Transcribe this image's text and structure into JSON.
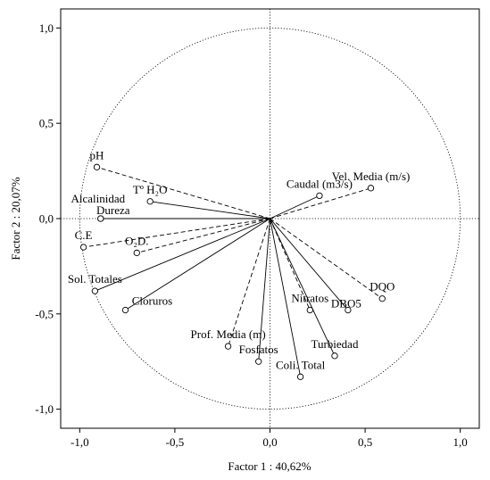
{
  "chart_data": {
    "type": "scatter",
    "subtype": "pca-correlation-circle",
    "xlabel": "Factor 1 : 40,62%",
    "ylabel": "Factor 2 : 20,07%",
    "xlim": [
      -1.1,
      1.1
    ],
    "ylim": [
      -1.1,
      1.1
    ],
    "x_ticks": [
      {
        "v": -1.0,
        "label": "-1,0"
      },
      {
        "v": -0.5,
        "label": "-0,5"
      },
      {
        "v": 0.0,
        "label": "0,0"
      },
      {
        "v": 0.5,
        "label": "0,5"
      },
      {
        "v": 1.0,
        "label": "1,0"
      }
    ],
    "y_ticks": [
      {
        "v": 1.0,
        "label": "1,0"
      },
      {
        "v": 0.5,
        "label": "0,5"
      },
      {
        "v": 0.0,
        "label": "0,0"
      },
      {
        "v": -0.5,
        "label": "-0,5"
      },
      {
        "v": -1.0,
        "label": "-1,0"
      }
    ],
    "grid": false,
    "unit_circle": true,
    "variables": [
      {
        "name": "pH",
        "x": -0.91,
        "y": 0.27,
        "line": "dashed",
        "label_pos": "above"
      },
      {
        "name": "Alcalinidad",
        "x": -0.89,
        "y": 0.0,
        "line": "solid",
        "label_pos": "upper-left"
      },
      {
        "name": "Dureza",
        "x": -0.89,
        "y": 0.0,
        "line": "dashed",
        "label_pos": "above-right"
      },
      {
        "name": "Tº H₂O",
        "x": -0.63,
        "y": 0.09,
        "line": "solid",
        "label_pos": "above"
      },
      {
        "name": "C.E",
        "x": -0.98,
        "y": -0.15,
        "line": "dashed",
        "label_pos": "above"
      },
      {
        "name": "O₂D.",
        "x": -0.7,
        "y": -0.18,
        "line": "dashed",
        "label_pos": "above"
      },
      {
        "name": "Sol. Totales",
        "x": -0.92,
        "y": -0.38,
        "line": "solid",
        "label_pos": "above"
      },
      {
        "name": "Cloruros",
        "x": -0.76,
        "y": -0.48,
        "line": "solid",
        "label_pos": "right"
      },
      {
        "name": "Caudal (m3/s)",
        "x": 0.26,
        "y": 0.12,
        "line": "solid",
        "label_pos": "above"
      },
      {
        "name": "Vel. Media (m/s)",
        "x": 0.53,
        "y": 0.16,
        "line": "dashed",
        "label_pos": "above"
      },
      {
        "name": "DQO",
        "x": 0.59,
        "y": -0.42,
        "line": "dashed",
        "label_pos": "above"
      },
      {
        "name": "DBO5",
        "x": 0.41,
        "y": -0.48,
        "line": "solid",
        "label_pos": "left"
      },
      {
        "name": "Nitratos",
        "x": 0.21,
        "y": -0.48,
        "line": "dashed",
        "label_pos": "above"
      },
      {
        "name": "Turbiedad",
        "x": 0.34,
        "y": -0.72,
        "line": "solid",
        "label_pos": "above"
      },
      {
        "name": "Prof. Media (m)",
        "x": -0.22,
        "y": -0.67,
        "line": "dashed",
        "label_pos": "above"
      },
      {
        "name": "Fosfatos",
        "x": -0.06,
        "y": -0.75,
        "line": "solid",
        "label_pos": "above"
      },
      {
        "name": "Coli. Total",
        "x": 0.16,
        "y": -0.83,
        "line": "solid",
        "label_pos": "above"
      }
    ]
  }
}
